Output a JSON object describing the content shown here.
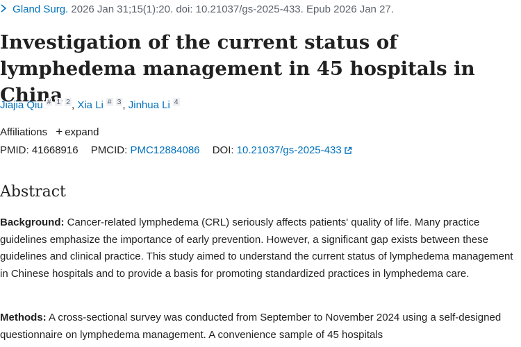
{
  "citation": {
    "chevron_icon": "chevron-right-icon",
    "journal": "Gland Surg.",
    "details": " 2026 Jan 31;15(1):20. doi: 10.21037/gs-2025-433. Epub 2026 Jan 27."
  },
  "title": "Investigation of the current status of lymphedema management in 45 hospitals in China",
  "authors": [
    {
      "name": "Jiajia Qiu",
      "marks": [
        "#",
        "1",
        "2"
      ]
    },
    {
      "name": "Xia Li",
      "marks": [
        "#",
        "3"
      ]
    },
    {
      "name": "Jinhua Li",
      "marks": [
        "4"
      ]
    }
  ],
  "author_separator": ", ",
  "affiliations": {
    "label": "Affiliations",
    "expand_label": "expand",
    "plus_icon": "plus-icon"
  },
  "identifiers": {
    "pmid_label": "PMID:",
    "pmid": "41668916",
    "pmcid_label": "PMCID:",
    "pmcid": "PMC12884086",
    "doi_label": "DOI:",
    "doi": "10.21037/gs-2025-433",
    "doi_icon": "external-link-icon"
  },
  "abstract": {
    "heading": "Abstract",
    "background_label": "Background:",
    "background_text": " Cancer-related lymphedema (CRL) seriously affects patients' quality of life. Many practice guidelines emphasize the importance of early prevention. However, a significant gap exists between these guidelines and clinical practice. This study aimed to understand the current status of lymphedema management in Chinese hospitals and to provide a basis for promoting standardized practices in lymphedema care.",
    "methods_label": "Methods:",
    "methods_text": " A cross-sectional survey was conducted from September to November 2024 using a self-designed questionnaire on lymphedema management. A convenience sample of 45 hospitals"
  },
  "colors": {
    "link": "#0071bc",
    "text": "#212121",
    "muted": "#5b616b"
  }
}
